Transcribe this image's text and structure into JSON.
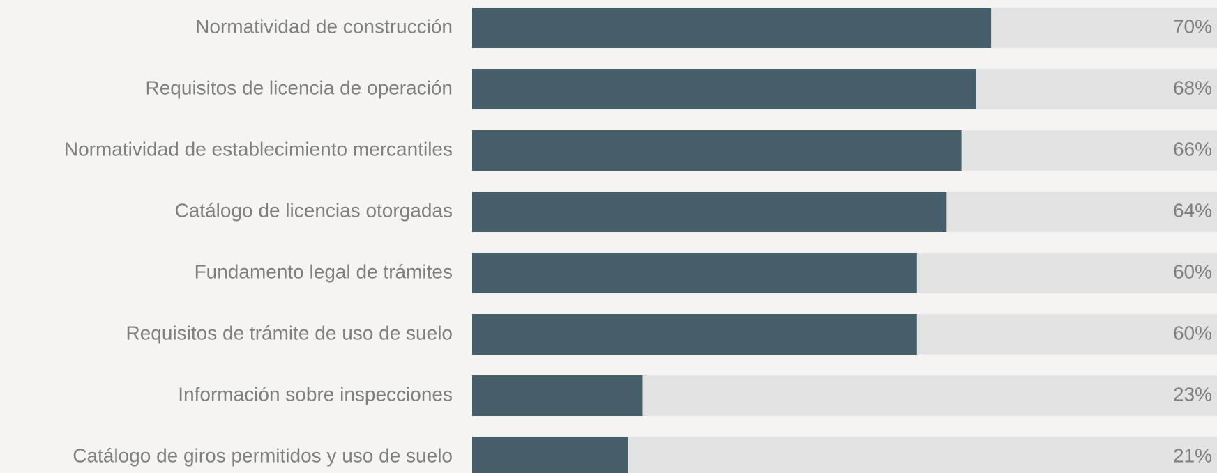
{
  "chart_data": {
    "type": "bar",
    "orientation": "horizontal",
    "categories": [
      "Normatividad de construcción",
      "Requisitos de licencia de operación",
      "Normatividad de establecimiento mercantiles",
      "Catálogo de licencias otorgadas",
      "Fundamento legal de trámites",
      "Requisitos de trámite de uso de suelo",
      "Información sobre inspecciones",
      "Catálogo de giros permitidos y uso de suelo"
    ],
    "values": [
      70,
      68,
      66,
      64,
      60,
      60,
      23,
      21
    ],
    "value_labels": [
      "70%",
      "68%",
      "66%",
      "64%",
      "60%",
      "60%",
      "23%",
      "21%"
    ],
    "color": "#455e69",
    "track_color": "#e3e3e3",
    "xlim": [
      0,
      100
    ]
  }
}
